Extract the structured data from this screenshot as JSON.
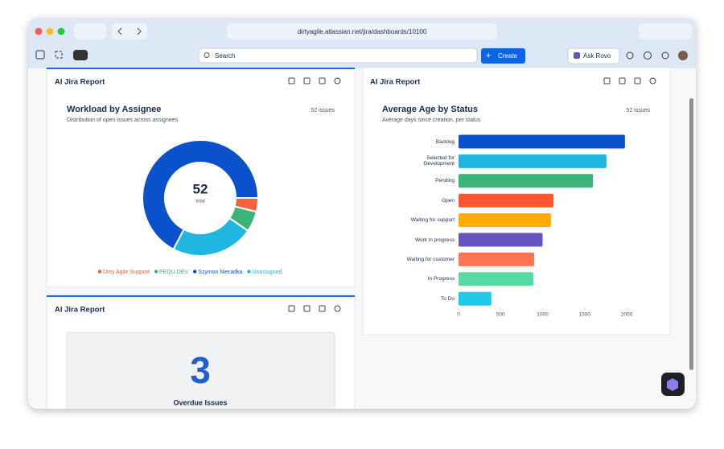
{
  "browser": {
    "url": "dirtyagile.atlassian.net/jira/dashboards/10100"
  },
  "topbar": {
    "search": "Search",
    "create": "Create",
    "ask_rovo": "Ask Rovo"
  },
  "panels": [
    {
      "title": "AI Jira Report",
      "chart_data": {
        "type": "pie",
        "title": "Workload by Assignee",
        "subtitle": "Distribution of open issues across assignees",
        "issue_count": "52 issues",
        "center_value": 52,
        "center_label": "total",
        "categories": [
          "Dirty Agile Support",
          "PEQU.DEV",
          "Szymon Nieradka",
          "Unassigned"
        ],
        "values": [
          2,
          3,
          35,
          12
        ],
        "colors": [
          "#f4623a",
          "#3db37a",
          "#0a52cc",
          "#1fb7df"
        ]
      }
    },
    {
      "title": "AI Jira Report",
      "chart_data": {
        "type": "bar",
        "orientation": "horizontal",
        "title": "Average Age by Status",
        "subtitle": "Average days since creation, per status",
        "issue_count": "52 issues",
        "categories": [
          "Backlog",
          "Selected for Development",
          "Pending",
          "Open",
          "Waiting for support",
          "Work in progress",
          "Waiting for customer",
          "In Progress",
          "To Do"
        ],
        "values": [
          1980,
          1760,
          1600,
          1130,
          1100,
          1000,
          900,
          890,
          390
        ],
        "colors": [
          "#0a52cc",
          "#1fb7df",
          "#3db37a",
          "#ff5630",
          "#ffab00",
          "#6554c0",
          "#ff7452",
          "#57d9a3",
          "#1fc9e8"
        ],
        "xlim": [
          0,
          2000
        ],
        "xticks": [
          0,
          500,
          1000,
          1500,
          2000
        ]
      }
    },
    {
      "title": "AI Jira Report",
      "metric": {
        "value": 3,
        "label": "Overdue Issues"
      }
    }
  ]
}
